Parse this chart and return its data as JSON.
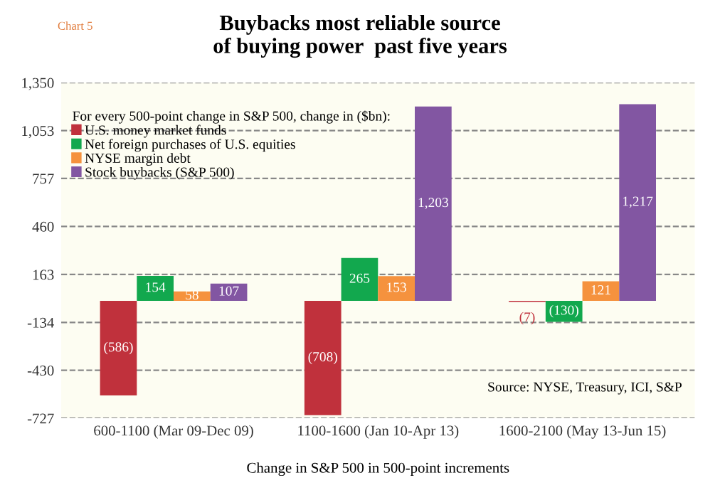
{
  "chart_data": {
    "type": "bar",
    "title": "Buybacks most reliable source\nof buying power  past five years",
    "xlabel": "Change in S&P 500 in 500-point increments",
    "legend_title": "For every 500-point change in S&P 500, change in ($bn):",
    "categories": [
      "600-1100 (Mar 09-Dec 09)",
      "1100-1600 (Jan 10-Apr 13)",
      "1600-2100 (May 13-Jun 15)"
    ],
    "series": [
      {
        "name": "U.S. money market funds",
        "color": "#c0313c",
        "values": [
          -586,
          -708,
          -7
        ],
        "value_labels": [
          "(586)",
          "(708)",
          "(7)"
        ]
      },
      {
        "name": "Net foreign purchases of U.S. equities",
        "color": "#12a84e",
        "values": [
          154,
          265,
          -130
        ],
        "value_labels": [
          "154",
          "265",
          "(130)"
        ]
      },
      {
        "name": "NYSE margin debt",
        "color": "#f5923e",
        "values": [
          58,
          153,
          121
        ],
        "value_labels": [
          "58",
          "153",
          "121"
        ]
      },
      {
        "name": "Stock buybacks (S&P 500)",
        "color": "#8256a2",
        "values": [
          107,
          1203,
          1217
        ],
        "value_labels": [
          "107",
          "1,203",
          "1,217"
        ]
      }
    ],
    "ylim": [
      -727,
      1350
    ],
    "yticks": [
      {
        "value": 1350,
        "label": "1,350"
      },
      {
        "value": 1053,
        "label": "1,053"
      },
      757,
      460,
      163,
      -134,
      -430,
      -727
    ],
    "grid": "y",
    "legend": "top left",
    "annotations": [
      "Chart 5",
      "Source: NYSE, Treasury, ICI, S&P"
    ]
  }
}
